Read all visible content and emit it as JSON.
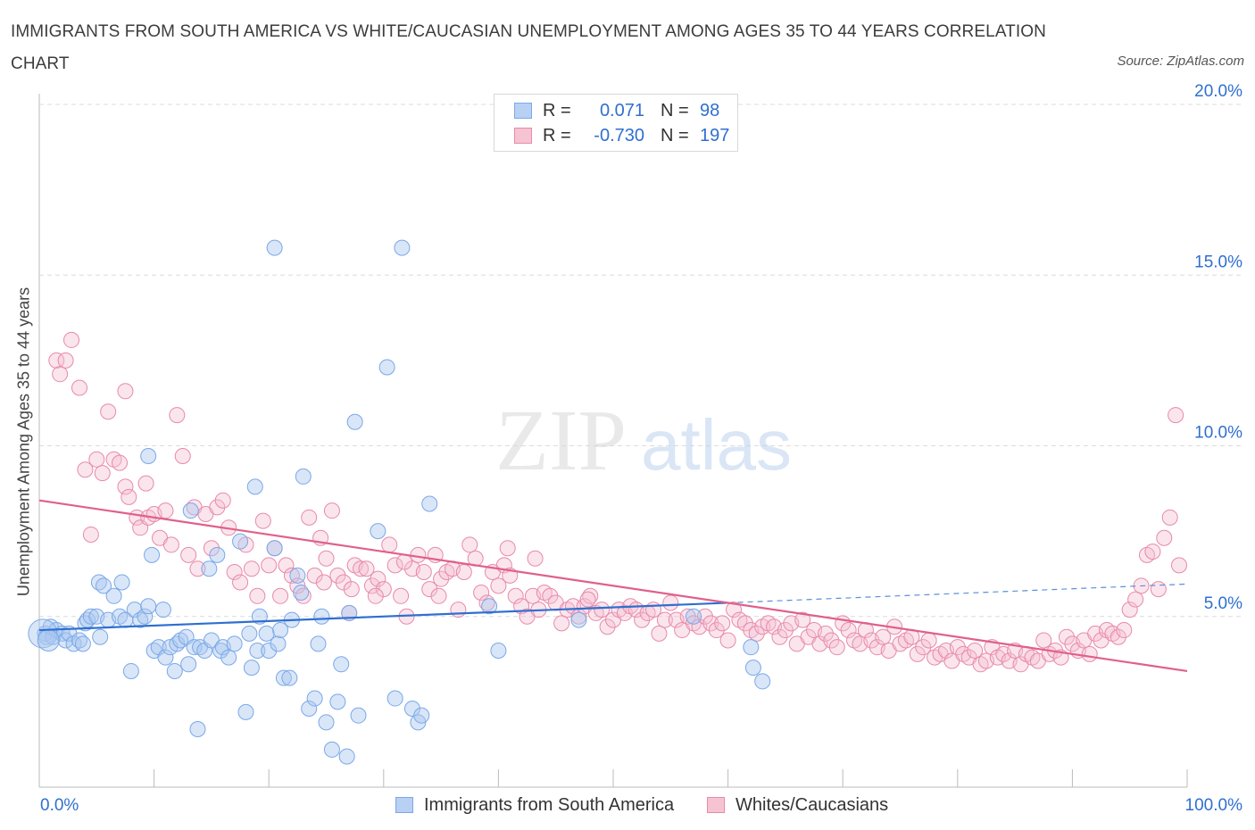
{
  "title": "IMMIGRANTS FROM SOUTH AMERICA VS WHITE/CAUCASIAN UNEMPLOYMENT AMONG AGES 35 TO 44 YEARS CORRELATION CHART",
  "source": "Source: ZipAtlas.com",
  "watermark": {
    "zip": "ZIP",
    "atlas": "atlas"
  },
  "legend": {
    "r_label": "R =",
    "n_label": "N =",
    "series": [
      {
        "name": "Immigrants from South America",
        "r": "0.071",
        "n": "98",
        "color": "#7aa8e8",
        "fill": "#b8d0f4"
      },
      {
        "name": "Whites/Caucasians",
        "r": "-0.730",
        "n": "197",
        "color": "#e88aa8",
        "fill": "#f6c3d3"
      }
    ]
  },
  "chart_data": {
    "type": "scatter",
    "xlabel": "",
    "ylabel": "Unemployment Among Ages 35 to 44 years",
    "xlim": [
      0,
      100
    ],
    "ylim": [
      0,
      20
    ],
    "x_tick_labels": [
      "0.0%",
      "100.0%"
    ],
    "y_ticks": [
      5,
      10,
      15,
      20
    ],
    "y_tick_labels": [
      "5.0%",
      "10.0%",
      "15.0%",
      "20.0%"
    ],
    "grid": true,
    "series": [
      {
        "name": "Immigrants from South America",
        "color": "#5b8fd8",
        "trend": {
          "x0": 0,
          "y0": 4.6,
          "x1": 60,
          "y1": 5.4,
          "dashed_to_x": 100,
          "dashed_to_y": 5.95
        },
        "points": [
          [
            0.5,
            4.5
          ],
          [
            0.6,
            4.4
          ],
          [
            1,
            4.7
          ],
          [
            1.2,
            4.4
          ],
          [
            1.5,
            4.6
          ],
          [
            2,
            4.5
          ],
          [
            2.3,
            4.3
          ],
          [
            2.6,
            4.5
          ],
          [
            3,
            4.2
          ],
          [
            3.5,
            4.3
          ],
          [
            3.8,
            4.2
          ],
          [
            4,
            4.8
          ],
          [
            4.2,
            4.9
          ],
          [
            4.5,
            5
          ],
          [
            5,
            5
          ],
          [
            5.3,
            4.4
          ],
          [
            5.2,
            6
          ],
          [
            5.6,
            5.9
          ],
          [
            6,
            4.9
          ],
          [
            6.5,
            5.6
          ],
          [
            7,
            5
          ],
          [
            7.2,
            6
          ],
          [
            7.5,
            4.9
          ],
          [
            8,
            3.4
          ],
          [
            8.3,
            5.2
          ],
          [
            8.8,
            4.9
          ],
          [
            9.2,
            5
          ],
          [
            9.5,
            5.3
          ],
          [
            9.8,
            6.8
          ],
          [
            10,
            4
          ],
          [
            10.4,
            4.1
          ],
          [
            10.8,
            5.2
          ],
          [
            11,
            3.8
          ],
          [
            11.4,
            4.1
          ],
          [
            11.8,
            3.4
          ],
          [
            12,
            4.2
          ],
          [
            12.3,
            4.3
          ],
          [
            12.8,
            4.4
          ],
          [
            13,
            3.6
          ],
          [
            13.2,
            8.1
          ],
          [
            13.5,
            4.1
          ],
          [
            13.8,
            1.7
          ],
          [
            14,
            4.1
          ],
          [
            14.4,
            4
          ],
          [
            14.8,
            6.4
          ],
          [
            15,
            4.3
          ],
          [
            15.5,
            6.8
          ],
          [
            15.8,
            4
          ],
          [
            16,
            4.1
          ],
          [
            16.5,
            3.8
          ],
          [
            17,
            4.2
          ],
          [
            17.5,
            7.2
          ],
          [
            18,
            2.2
          ],
          [
            18.3,
            4.5
          ],
          [
            18.5,
            3.5
          ],
          [
            18.8,
            8.8
          ],
          [
            19,
            4
          ],
          [
            19.2,
            5
          ],
          [
            19.8,
            4.5
          ],
          [
            20,
            4
          ],
          [
            20.5,
            7
          ],
          [
            20.8,
            4.2
          ],
          [
            21,
            4.6
          ],
          [
            21.3,
            3.2
          ],
          [
            21.8,
            3.2
          ],
          [
            22,
            4.9
          ],
          [
            22.5,
            6.2
          ],
          [
            22.8,
            5.7
          ],
          [
            23,
            9.1
          ],
          [
            23.5,
            2.3
          ],
          [
            24,
            2.6
          ],
          [
            24.3,
            4.2
          ],
          [
            24.6,
            5
          ],
          [
            25,
            1.9
          ],
          [
            25.5,
            1.1
          ],
          [
            26,
            2.5
          ],
          [
            26.3,
            3.6
          ],
          [
            26.8,
            0.9
          ],
          [
            27,
            5.1
          ],
          [
            27.5,
            10.7
          ],
          [
            27.8,
            2.1
          ],
          [
            29.5,
            7.5
          ],
          [
            30.3,
            12.3
          ],
          [
            31,
            2.6
          ],
          [
            32.5,
            2.3
          ],
          [
            33,
            1.9
          ],
          [
            33.3,
            2.1
          ],
          [
            34,
            8.3
          ],
          [
            39.2,
            5.3
          ],
          [
            40,
            4
          ],
          [
            47,
            4.9
          ],
          [
            57,
            5
          ],
          [
            62,
            4.1
          ],
          [
            62.2,
            3.5
          ],
          [
            63,
            3.1
          ],
          [
            9.5,
            9.7
          ],
          [
            20.5,
            15.8
          ],
          [
            31.6,
            15.8
          ]
        ]
      },
      {
        "name": "Whites/Caucasians",
        "color": "#e8739a",
        "trend": {
          "x0": 0,
          "y0": 8.4,
          "x1": 100,
          "y1": 3.4
        },
        "points": [
          [
            1.5,
            12.5
          ],
          [
            1.8,
            12.1
          ],
          [
            2.3,
            12.5
          ],
          [
            2.8,
            13.1
          ],
          [
            3.5,
            11.7
          ],
          [
            4,
            9.3
          ],
          [
            4.5,
            7.4
          ],
          [
            5,
            9.6
          ],
          [
            5.5,
            9.2
          ],
          [
            6,
            11
          ],
          [
            6.5,
            9.6
          ],
          [
            7,
            9.5
          ],
          [
            7.5,
            11.6
          ],
          [
            7.5,
            8.8
          ],
          [
            7.8,
            8.5
          ],
          [
            8.5,
            7.9
          ],
          [
            8.8,
            7.6
          ],
          [
            9.3,
            8.9
          ],
          [
            9.5,
            7.9
          ],
          [
            10,
            8
          ],
          [
            10.5,
            7.3
          ],
          [
            11,
            8.1
          ],
          [
            11.5,
            7.1
          ],
          [
            12,
            10.9
          ],
          [
            12.5,
            9.7
          ],
          [
            13,
            6.8
          ],
          [
            13.5,
            8.2
          ],
          [
            13.8,
            6.4
          ],
          [
            14.5,
            8
          ],
          [
            15,
            7
          ],
          [
            15.5,
            8.2
          ],
          [
            16,
            8.4
          ],
          [
            16.5,
            7.6
          ],
          [
            17,
            6.3
          ],
          [
            17.5,
            6
          ],
          [
            18,
            7.1
          ],
          [
            18.5,
            6.4
          ],
          [
            19,
            5.6
          ],
          [
            19.5,
            7.8
          ],
          [
            20,
            6.5
          ],
          [
            20.5,
            7
          ],
          [
            21,
            5.6
          ],
          [
            21.5,
            6.5
          ],
          [
            22,
            6.2
          ],
          [
            22.5,
            5.9
          ],
          [
            23,
            5.6
          ],
          [
            23.5,
            7.9
          ],
          [
            24,
            6.2
          ],
          [
            24.5,
            7.3
          ],
          [
            25,
            6.7
          ],
          [
            25.5,
            8.1
          ],
          [
            26,
            6.2
          ],
          [
            26.5,
            6
          ],
          [
            27,
            5.1
          ],
          [
            27.5,
            6.5
          ],
          [
            28,
            6.4
          ],
          [
            28.5,
            6.4
          ],
          [
            29,
            5.9
          ],
          [
            29.5,
            6.1
          ],
          [
            30,
            5.8
          ],
          [
            30.5,
            7.1
          ],
          [
            31,
            6.5
          ],
          [
            31.5,
            5.6
          ],
          [
            32,
            5
          ],
          [
            32.5,
            6.4
          ],
          [
            33,
            6.8
          ],
          [
            33.5,
            6.3
          ],
          [
            34,
            5.8
          ],
          [
            34.5,
            6.8
          ],
          [
            35,
            6.1
          ],
          [
            35.5,
            6.3
          ],
          [
            36,
            6.4
          ],
          [
            36.5,
            5.2
          ],
          [
            37,
            6.3
          ],
          [
            37.5,
            7.1
          ],
          [
            38,
            6.7
          ],
          [
            38.5,
            5.7
          ],
          [
            39,
            5.4
          ],
          [
            39.5,
            6.3
          ],
          [
            40,
            5.9
          ],
          [
            40.5,
            6.5
          ],
          [
            41,
            6.2
          ],
          [
            41.5,
            5.6
          ],
          [
            42,
            5.3
          ],
          [
            42.5,
            5
          ],
          [
            43,
            5.6
          ],
          [
            43.5,
            5.2
          ],
          [
            44,
            5.7
          ],
          [
            44.5,
            5.6
          ],
          [
            45,
            5.4
          ],
          [
            45.5,
            4.8
          ],
          [
            46,
            5.2
          ],
          [
            46.5,
            5.3
          ],
          [
            47,
            5
          ],
          [
            47.5,
            5.3
          ],
          [
            48,
            5.6
          ],
          [
            48.5,
            5.1
          ],
          [
            49,
            5.2
          ],
          [
            49.5,
            4.7
          ],
          [
            50,
            4.9
          ],
          [
            50.5,
            5.2
          ],
          [
            51,
            5.1
          ],
          [
            51.5,
            5.3
          ],
          [
            52,
            5.2
          ],
          [
            52.5,
            4.9
          ],
          [
            53,
            5.1
          ],
          [
            53.5,
            5.2
          ],
          [
            54,
            4.5
          ],
          [
            54.5,
            4.9
          ],
          [
            55,
            5.4
          ],
          [
            55.5,
            4.9
          ],
          [
            56,
            4.6
          ],
          [
            56.5,
            5
          ],
          [
            57,
            4.8
          ],
          [
            57.5,
            4.7
          ],
          [
            58,
            5
          ],
          [
            58.5,
            4.8
          ],
          [
            59,
            4.6
          ],
          [
            59.5,
            4.8
          ],
          [
            60,
            4.3
          ],
          [
            60.5,
            5.2
          ],
          [
            61,
            4.9
          ],
          [
            61.5,
            4.8
          ],
          [
            62,
            4.6
          ],
          [
            62.5,
            4.5
          ],
          [
            63,
            4.7
          ],
          [
            63.5,
            4.8
          ],
          [
            64,
            4.7
          ],
          [
            64.5,
            4.4
          ],
          [
            65,
            4.6
          ],
          [
            65.5,
            4.8
          ],
          [
            66,
            4.2
          ],
          [
            66.5,
            4.9
          ],
          [
            67,
            4.4
          ],
          [
            67.5,
            4.6
          ],
          [
            68,
            4.2
          ],
          [
            68.5,
            4.5
          ],
          [
            69,
            4.3
          ],
          [
            69.5,
            4.1
          ],
          [
            70,
            4.8
          ],
          [
            70.5,
            4.6
          ],
          [
            71,
            4.3
          ],
          [
            71.5,
            4.2
          ],
          [
            72,
            4.6
          ],
          [
            72.5,
            4.3
          ],
          [
            73,
            4.1
          ],
          [
            73.5,
            4.4
          ],
          [
            74,
            4
          ],
          [
            74.5,
            4.7
          ],
          [
            75,
            4.2
          ],
          [
            75.5,
            4.3
          ],
          [
            76,
            4.4
          ],
          [
            76.5,
            3.9
          ],
          [
            77,
            4.1
          ],
          [
            77.5,
            4.3
          ],
          [
            78,
            3.8
          ],
          [
            78.5,
            3.9
          ],
          [
            79,
            4
          ],
          [
            79.5,
            3.7
          ],
          [
            80,
            4.1
          ],
          [
            80.5,
            3.9
          ],
          [
            81,
            3.8
          ],
          [
            81.5,
            4
          ],
          [
            82,
            3.6
          ],
          [
            82.5,
            3.7
          ],
          [
            83,
            4.1
          ],
          [
            83.5,
            3.8
          ],
          [
            84,
            3.9
          ],
          [
            84.5,
            3.7
          ],
          [
            85,
            4
          ],
          [
            85.5,
            3.6
          ],
          [
            86,
            3.9
          ],
          [
            86.5,
            3.8
          ],
          [
            87,
            3.7
          ],
          [
            87.5,
            4.3
          ],
          [
            88,
            3.9
          ],
          [
            88.5,
            4
          ],
          [
            89,
            3.8
          ],
          [
            89.5,
            4.4
          ],
          [
            90,
            4.2
          ],
          [
            90.5,
            4
          ],
          [
            91,
            4.3
          ],
          [
            91.5,
            3.9
          ],
          [
            92,
            4.5
          ],
          [
            92.5,
            4.3
          ],
          [
            93,
            4.6
          ],
          [
            93.5,
            4.5
          ],
          [
            94,
            4.4
          ],
          [
            94.5,
            4.6
          ],
          [
            95,
            5.2
          ],
          [
            95.5,
            5.5
          ],
          [
            96,
            5.9
          ],
          [
            96.5,
            6.8
          ],
          [
            97,
            6.9
          ],
          [
            98,
            7.3
          ],
          [
            98.5,
            7.9
          ],
          [
            99,
            10.9
          ],
          [
            97.5,
            5.8
          ],
          [
            99.3,
            6.5
          ],
          [
            40.8,
            7
          ],
          [
            43.2,
            6.7
          ],
          [
            34.8,
            5.6
          ],
          [
            27.2,
            5.8
          ],
          [
            31.8,
            6.6
          ],
          [
            24.8,
            6
          ],
          [
            29.3,
            5.6
          ],
          [
            47.8,
            5.5
          ]
        ]
      }
    ]
  }
}
